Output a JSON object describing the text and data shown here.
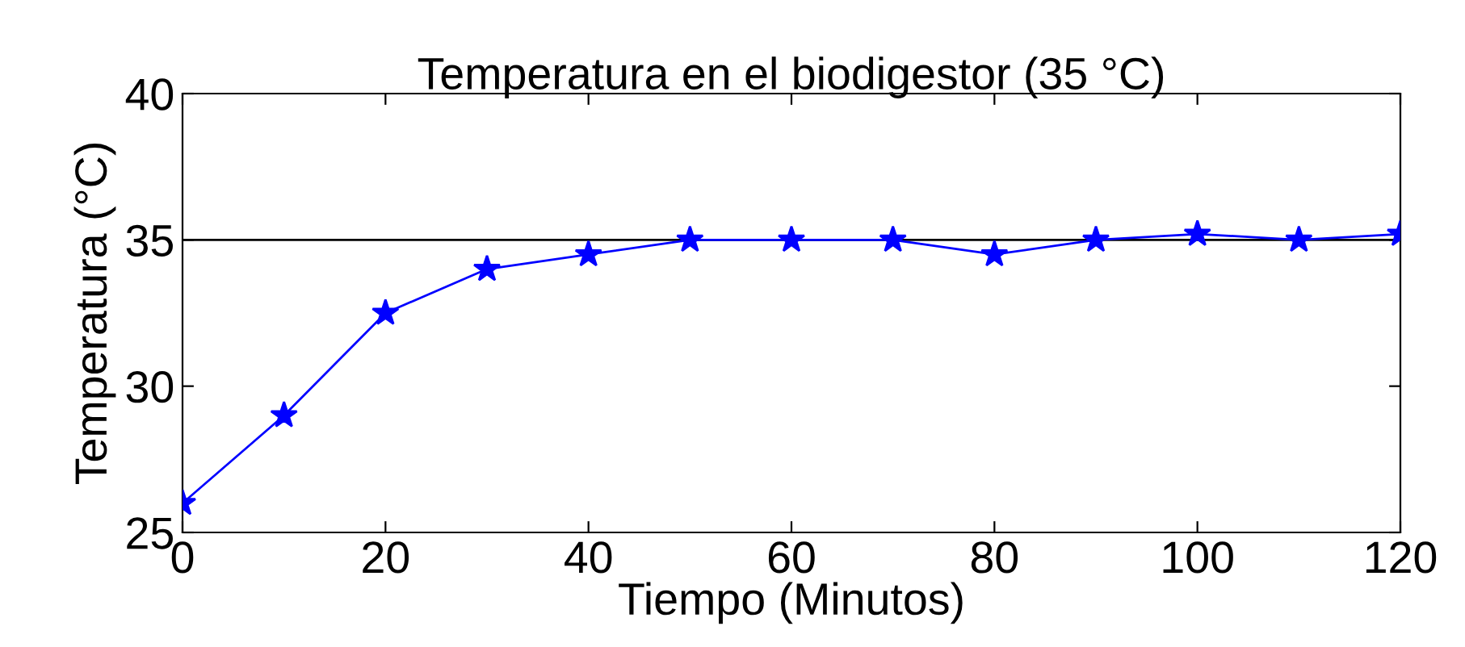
{
  "chart_data": {
    "type": "line",
    "title": "Temperatura en el biodigestor (35 °C)",
    "xlabel": "Tiempo (Minutos)",
    "ylabel": "Temperatura (°C)",
    "x": [
      0,
      10,
      20,
      30,
      40,
      50,
      60,
      70,
      80,
      90,
      100,
      110,
      120
    ],
    "series": [
      {
        "color": "#0000ff",
        "values": [
          26,
          29,
          32.5,
          34,
          34.5,
          35,
          35,
          35,
          34.5,
          35,
          35.2,
          35,
          35.2
        ]
      }
    ],
    "xlim": [
      0,
      120
    ],
    "xticks": [
      0,
      20,
      40,
      60,
      80,
      100,
      120
    ],
    "ylim": [
      25,
      40
    ],
    "yticks": [
      25,
      30,
      35,
      40
    ],
    "ref_lines": [
      {
        "axis": "y",
        "value": 35,
        "color": "#000000"
      }
    ],
    "marker": "star",
    "line_style": "solid",
    "grid": false,
    "legend": false
  }
}
